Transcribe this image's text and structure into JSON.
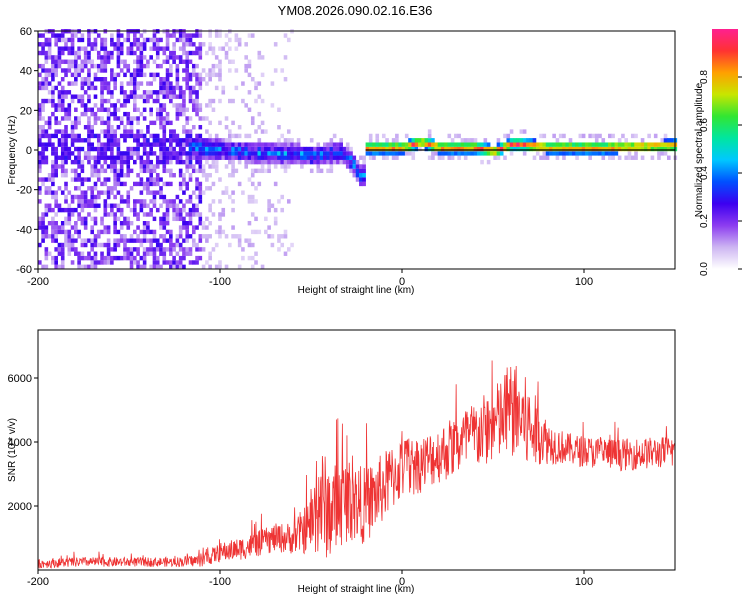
{
  "title": "YM08.2026.090.02.16.E36",
  "chart_data": [
    {
      "type": "heatmap",
      "xlabel": "Height of straight line (km)",
      "ylabel": "Frequency (Hz)",
      "xlim": [
        -200,
        150
      ],
      "ylim": [
        -60,
        60
      ],
      "xticks": [
        -200,
        -100,
        0,
        100
      ],
      "yticks": [
        -60,
        -40,
        -20,
        0,
        20,
        40,
        60
      ],
      "colorbar": {
        "label": "Normalized spectral amplitude",
        "ticks": [
          "0.0",
          "0.2",
          "0.4",
          "0.6",
          "0.8"
        ],
        "range": [
          0,
          1
        ],
        "colormap": [
          "#ffffff",
          "#cdb5f2",
          "#8c3cf0",
          "#3c00f0",
          "#0050ff",
          "#00c8ff",
          "#00e6a0",
          "#32e632",
          "#c8e600",
          "#ffa000",
          "#ff3232",
          "#ff2090"
        ]
      },
      "ridge": {
        "description_free_values": true,
        "x": [
          -115,
          -100,
          -90,
          -80,
          -70,
          -60,
          -50,
          -40,
          -35,
          -30,
          -25,
          -22,
          -20,
          0,
          10,
          20,
          30,
          40,
          50,
          60,
          70,
          80,
          100,
          110,
          150
        ],
        "y": [
          0,
          -1,
          -2,
          -3,
          -3,
          -3,
          -4,
          -3,
          -2,
          -5,
          -12,
          -15,
          0,
          0,
          3,
          0,
          0,
          0,
          -2,
          2,
          1,
          0,
          0,
          0,
          1
        ]
      }
    },
    {
      "type": "line",
      "xlabel": "Height of straight line (km)",
      "ylabel": "SNR (10 * v/v)",
      "xlim": [
        -200,
        150
      ],
      "ylim": [
        0,
        7500
      ],
      "xticks": [
        -200,
        -100,
        0,
        100
      ],
      "yticks": [
        2000,
        4000,
        6000
      ],
      "color": "#ee3333",
      "x": [
        -200,
        -175,
        -150,
        -125,
        -110,
        -100,
        -90,
        -80,
        -70,
        -60,
        -50,
        -45,
        -40,
        -30,
        -20,
        -10,
        0,
        10,
        20,
        30,
        40,
        50,
        55,
        60,
        65,
        70,
        75,
        80,
        90,
        100,
        120,
        150
      ],
      "y": [
        200,
        250,
        250,
        250,
        300,
        550,
        650,
        800,
        1000,
        1000,
        1400,
        2200,
        1800,
        2200,
        2000,
        2600,
        3200,
        3300,
        3600,
        3900,
        4200,
        4500,
        4700,
        5000,
        4800,
        4400,
        4300,
        4000,
        3800,
        3700,
        3600,
        3700
      ],
      "amplitude": [
        150,
        150,
        150,
        150,
        200,
        300,
        350,
        400,
        450,
        500,
        900,
        1800,
        1500,
        1300,
        1200,
        1100,
        1000,
        900,
        900,
        1000,
        1100,
        1200,
        1400,
        1500,
        1600,
        1400,
        1000,
        700,
        500,
        500,
        500,
        500
      ]
    }
  ]
}
